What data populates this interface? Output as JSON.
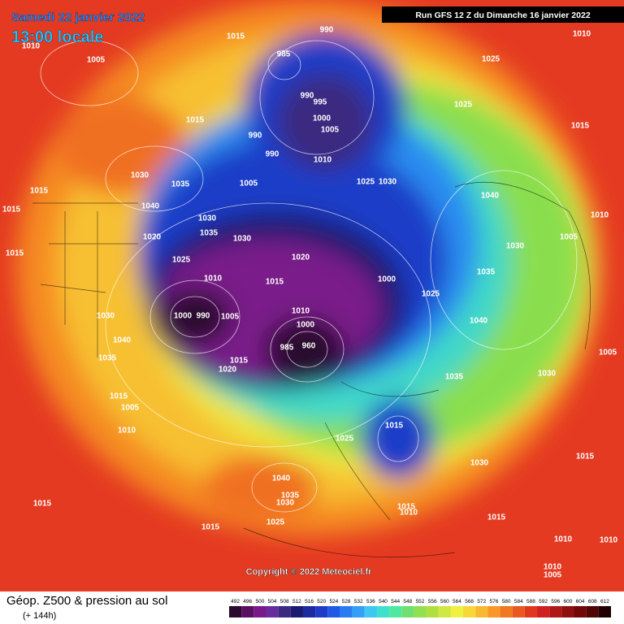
{
  "header": {
    "date": "Samedi 22 janvier 2022",
    "time": "13:00 locale",
    "run": "Run GFS 12 Z du Dimanche 16 janvier 2022"
  },
  "copyright": "Copyright © 2022 Meteociel.fr",
  "footer": {
    "title": "Géop. Z500 & pression au sol",
    "lead": "(+ 144h)"
  },
  "scale": {
    "values": [
      492,
      496,
      500,
      504,
      508,
      512,
      516,
      520,
      524,
      528,
      532,
      536,
      540,
      544,
      548,
      552,
      556,
      560,
      564,
      568,
      572,
      576,
      580,
      584,
      588,
      592,
      596,
      600,
      604,
      608,
      612
    ],
    "colors": [
      "#2b0a2e",
      "#5a1060",
      "#7a1a8a",
      "#6a2aa0",
      "#3a2a80",
      "#1a1a70",
      "#1e2aa0",
      "#1e3cc8",
      "#1e5ae6",
      "#2a7df0",
      "#33a0f5",
      "#3cc8f0",
      "#40e0d0",
      "#50e8a0",
      "#70e070",
      "#90e050",
      "#b0e040",
      "#d0e840",
      "#f0f040",
      "#f8d838",
      "#f8b830",
      "#f89828",
      "#f07820",
      "#e85820",
      "#e03820",
      "#d02020",
      "#b01818",
      "#901010",
      "#700808",
      "#500404",
      "#200000"
    ]
  },
  "isobar_labels": [
    1015,
    990,
    1010,
    1010,
    1005,
    985,
    1025,
    990,
    995,
    1025,
    1015,
    990,
    1000,
    1005,
    1015,
    990,
    1010,
    1030,
    1035,
    1025,
    1030,
    1015,
    1005,
    1040,
    1040,
    1030,
    1035,
    1020,
    1030,
    1010,
    1015,
    1005,
    1025,
    1020,
    1030,
    1015,
    1010,
    1015,
    1000,
    1035,
    1025,
    1000,
    990,
    1005,
    1010,
    1030,
    1040,
    1040,
    1000,
    960,
    985,
    1035,
    1015,
    1020,
    1035,
    1030,
    1005,
    1015,
    1005,
    1010,
    1015,
    1025,
    1030,
    1015,
    1040,
    1035,
    1030,
    1015,
    1025,
    1015,
    1015,
    1010,
    1015,
    1010,
    1010,
    1010,
    1005
  ]
}
